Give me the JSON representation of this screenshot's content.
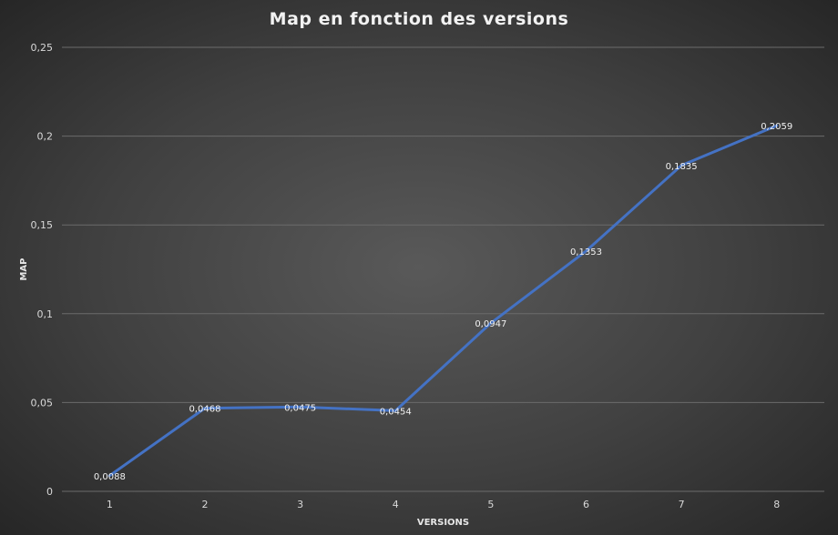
{
  "chart_data": {
    "type": "line",
    "title": "Map en fonction des versions",
    "xlabel": "VERSIONS",
    "ylabel": "MAP",
    "categories": [
      "1",
      "2",
      "3",
      "4",
      "5",
      "6",
      "7",
      "8"
    ],
    "series": [
      {
        "values": [
          0.0088,
          0.0468,
          0.0475,
          0.0454,
          0.0947,
          0.1353,
          0.1835,
          0.2059
        ],
        "labels": [
          "0,0088",
          "0,0468",
          "0,0475",
          "0,0454",
          "0,0947",
          "0,1353",
          "0,1835",
          "0,2059"
        ]
      }
    ],
    "ylim": [
      0,
      0.25
    ],
    "yticks": [
      0,
      0.05,
      0.1,
      0.15,
      0.2,
      0.25
    ],
    "ytick_labels": [
      "0",
      "0,05",
      "0,1",
      "0,15",
      "0,2",
      "0,25"
    ],
    "grid": true,
    "line_color": "#4472c4"
  }
}
